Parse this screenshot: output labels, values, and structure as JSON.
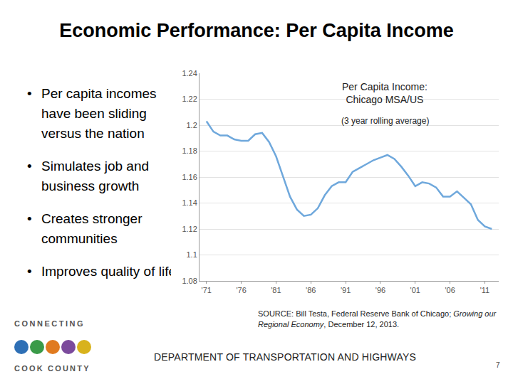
{
  "slide": {
    "title": "Economic Performance: Per Capita Income",
    "bullets": [
      "Per capita incomes have been sliding versus the nation",
      "Simulates job and business growth",
      "Creates stronger communities",
      "Improves quality of life"
    ],
    "source": {
      "before": "SOURCE: Bill Testa, Federal Reserve Bank of Chicago; ",
      "italic": "Growing our Regional Economy",
      "after": ", December 12, 2013."
    },
    "footer": "DEPARTMENT OF TRANSPORTATION AND HIGHWAYS",
    "page": "7",
    "logo": [
      "CONNECTING",
      "COOK COUNTY"
    ]
  },
  "chart_data": {
    "type": "line",
    "title": "Per Capita Income: Chicago MSA/US",
    "subtitle": "(3 year rolling average)",
    "x": [
      1971,
      1972,
      1973,
      1974,
      1975,
      1976,
      1977,
      1978,
      1979,
      1980,
      1981,
      1982,
      1983,
      1984,
      1985,
      1986,
      1987,
      1988,
      1989,
      1990,
      1991,
      1992,
      1993,
      1994,
      1995,
      1996,
      1997,
      1998,
      1999,
      2000,
      2001,
      2002,
      2003,
      2004,
      2005,
      2006,
      2007,
      2008,
      2009,
      2010,
      2011,
      2012
    ],
    "values": [
      1.203,
      1.195,
      1.192,
      1.192,
      1.189,
      1.188,
      1.188,
      1.193,
      1.194,
      1.187,
      1.176,
      1.16,
      1.145,
      1.135,
      1.13,
      1.131,
      1.136,
      1.146,
      1.153,
      1.156,
      1.156,
      1.164,
      1.167,
      1.17,
      1.173,
      1.175,
      1.177,
      1.174,
      1.168,
      1.161,
      1.153,
      1.156,
      1.155,
      1.152,
      1.145,
      1.145,
      1.149,
      1.144,
      1.139,
      1.127,
      1.122,
      1.12
    ],
    "color": "#6fa8dc",
    "xlim": [
      1970,
      2013
    ],
    "xticks": [
      {
        "value": 1971,
        "label": "'71"
      },
      {
        "value": 1976,
        "label": "'76"
      },
      {
        "value": 1981,
        "label": "'81"
      },
      {
        "value": 1986,
        "label": "'86"
      },
      {
        "value": 1991,
        "label": "'91"
      },
      {
        "value": 1996,
        "label": "'96"
      },
      {
        "value": 2001,
        "label": "'01"
      },
      {
        "value": 2006,
        "label": "'06"
      },
      {
        "value": 2011,
        "label": "'11"
      }
    ],
    "ylim": [
      1.08,
      1.24
    ],
    "yticks": [
      1.08,
      1.1,
      1.12,
      1.14,
      1.16,
      1.18,
      1.2,
      1.22,
      1.24
    ],
    "grid": true
  }
}
